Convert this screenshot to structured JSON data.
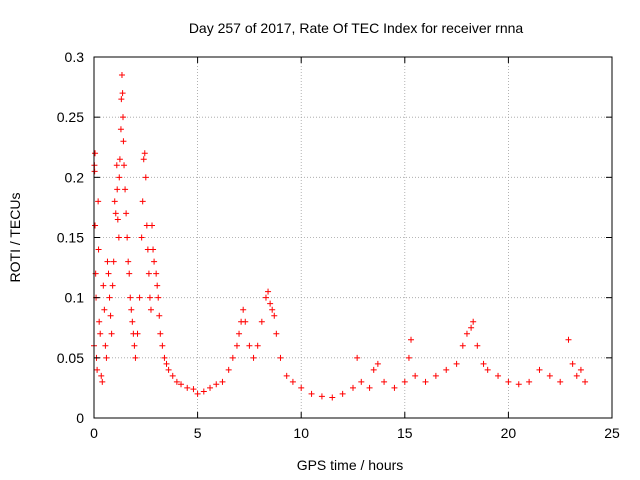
{
  "chart_data": {
    "type": "scatter",
    "title": "Day 257 of 2017, Rate Of TEC Index for receiver rnna",
    "xlabel": "GPS time / hours",
    "ylabel": "ROTI / TECUs",
    "xlim": [
      0,
      25
    ],
    "ylim": [
      0,
      0.3
    ],
    "xticks": [
      0,
      5,
      10,
      15,
      20,
      25
    ],
    "xtick_labels": [
      "0",
      "5",
      "10",
      "15",
      "20",
      "25"
    ],
    "yticks": [
      0,
      0.05,
      0.1,
      0.15,
      0.2,
      0.25,
      0.3
    ],
    "ytick_labels": [
      "0",
      "0.05",
      "0.1",
      "0.15",
      "0.2",
      "0.25",
      "0.3"
    ],
    "grid": true,
    "marker": "+",
    "marker_color": "#ff0000",
    "series": [
      {
        "points": [
          [
            0.0,
            0.06
          ],
          [
            0.02,
            0.21
          ],
          [
            0.03,
            0.205
          ],
          [
            0.05,
            0.22
          ],
          [
            0.05,
            0.16
          ],
          [
            0.08,
            0.12
          ],
          [
            0.1,
            0.1
          ],
          [
            0.12,
            0.05
          ],
          [
            0.15,
            0.04
          ],
          [
            0.2,
            0.18
          ],
          [
            0.22,
            0.14
          ],
          [
            0.25,
            0.08
          ],
          [
            0.3,
            0.07
          ],
          [
            0.35,
            0.035
          ],
          [
            0.4,
            0.03
          ],
          [
            0.45,
            0.11
          ],
          [
            0.5,
            0.09
          ],
          [
            0.55,
            0.06
          ],
          [
            0.6,
            0.05
          ],
          [
            0.65,
            0.13
          ],
          [
            0.7,
            0.12
          ],
          [
            0.75,
            0.1
          ],
          [
            0.8,
            0.085
          ],
          [
            0.85,
            0.07
          ],
          [
            0.9,
            0.11
          ],
          [
            0.95,
            0.13
          ],
          [
            1.0,
            0.18
          ],
          [
            1.05,
            0.17
          ],
          [
            1.1,
            0.21
          ],
          [
            1.12,
            0.19
          ],
          [
            1.15,
            0.165
          ],
          [
            1.2,
            0.15
          ],
          [
            1.22,
            0.2
          ],
          [
            1.25,
            0.215
          ],
          [
            1.3,
            0.24
          ],
          [
            1.32,
            0.265
          ],
          [
            1.35,
            0.285
          ],
          [
            1.38,
            0.27
          ],
          [
            1.4,
            0.25
          ],
          [
            1.42,
            0.23
          ],
          [
            1.45,
            0.21
          ],
          [
            1.5,
            0.19
          ],
          [
            1.55,
            0.17
          ],
          [
            1.6,
            0.15
          ],
          [
            1.65,
            0.13
          ],
          [
            1.7,
            0.12
          ],
          [
            1.75,
            0.1
          ],
          [
            1.8,
            0.09
          ],
          [
            1.85,
            0.08
          ],
          [
            1.9,
            0.07
          ],
          [
            1.95,
            0.06
          ],
          [
            2.0,
            0.05
          ],
          [
            2.1,
            0.07
          ],
          [
            2.2,
            0.1
          ],
          [
            2.3,
            0.15
          ],
          [
            2.35,
            0.18
          ],
          [
            2.4,
            0.215
          ],
          [
            2.45,
            0.22
          ],
          [
            2.5,
            0.2
          ],
          [
            2.55,
            0.16
          ],
          [
            2.6,
            0.14
          ],
          [
            2.65,
            0.12
          ],
          [
            2.7,
            0.1
          ],
          [
            2.75,
            0.09
          ],
          [
            2.8,
            0.16
          ],
          [
            2.85,
            0.14
          ],
          [
            2.9,
            0.13
          ],
          [
            3.0,
            0.12
          ],
          [
            3.05,
            0.11
          ],
          [
            3.1,
            0.1
          ],
          [
            3.15,
            0.085
          ],
          [
            3.2,
            0.07
          ],
          [
            3.3,
            0.06
          ],
          [
            3.4,
            0.05
          ],
          [
            3.5,
            0.045
          ],
          [
            3.6,
            0.04
          ],
          [
            3.8,
            0.035
          ],
          [
            4.0,
            0.03
          ],
          [
            4.2,
            0.028
          ],
          [
            4.5,
            0.025
          ],
          [
            4.8,
            0.024
          ],
          [
            5.0,
            0.02
          ],
          [
            5.3,
            0.022
          ],
          [
            5.6,
            0.025
          ],
          [
            5.9,
            0.028
          ],
          [
            6.2,
            0.03
          ],
          [
            6.5,
            0.04
          ],
          [
            6.7,
            0.05
          ],
          [
            6.9,
            0.06
          ],
          [
            7.0,
            0.07
          ],
          [
            7.1,
            0.08
          ],
          [
            7.2,
            0.09
          ],
          [
            7.3,
            0.08
          ],
          [
            7.5,
            0.06
          ],
          [
            7.7,
            0.05
          ],
          [
            7.9,
            0.06
          ],
          [
            8.1,
            0.08
          ],
          [
            8.3,
            0.1
          ],
          [
            8.4,
            0.105
          ],
          [
            8.5,
            0.095
          ],
          [
            8.6,
            0.09
          ],
          [
            8.7,
            0.085
          ],
          [
            8.8,
            0.07
          ],
          [
            9.0,
            0.05
          ],
          [
            9.3,
            0.035
          ],
          [
            9.6,
            0.03
          ],
          [
            10.0,
            0.025
          ],
          [
            10.5,
            0.02
          ],
          [
            11.0,
            0.018
          ],
          [
            11.5,
            0.017
          ],
          [
            12.0,
            0.02
          ],
          [
            12.5,
            0.025
          ],
          [
            12.7,
            0.05
          ],
          [
            12.9,
            0.03
          ],
          [
            13.3,
            0.025
          ],
          [
            13.5,
            0.04
          ],
          [
            13.7,
            0.045
          ],
          [
            14.0,
            0.03
          ],
          [
            14.5,
            0.025
          ],
          [
            15.0,
            0.03
          ],
          [
            15.2,
            0.05
          ],
          [
            15.3,
            0.065
          ],
          [
            15.5,
            0.035
          ],
          [
            16.0,
            0.03
          ],
          [
            16.5,
            0.035
          ],
          [
            17.0,
            0.04
          ],
          [
            17.5,
            0.045
          ],
          [
            17.8,
            0.06
          ],
          [
            18.0,
            0.07
          ],
          [
            18.2,
            0.075
          ],
          [
            18.3,
            0.08
          ],
          [
            18.5,
            0.06
          ],
          [
            18.8,
            0.045
          ],
          [
            19.0,
            0.04
          ],
          [
            19.5,
            0.035
          ],
          [
            20.0,
            0.03
          ],
          [
            20.5,
            0.028
          ],
          [
            21.0,
            0.03
          ],
          [
            21.5,
            0.04
          ],
          [
            22.0,
            0.035
          ],
          [
            22.5,
            0.03
          ],
          [
            22.9,
            0.065
          ],
          [
            23.1,
            0.045
          ],
          [
            23.3,
            0.035
          ],
          [
            23.5,
            0.04
          ],
          [
            23.7,
            0.03
          ]
        ]
      }
    ]
  }
}
